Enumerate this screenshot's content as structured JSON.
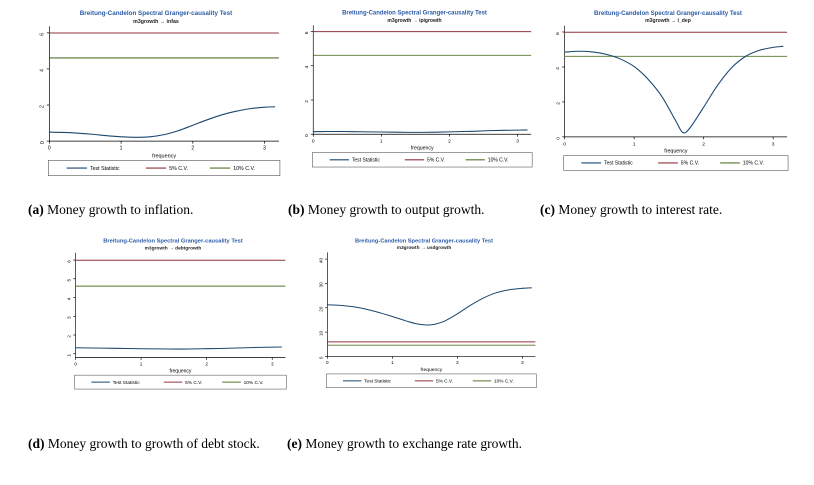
{
  "figure": {
    "legend": {
      "test": "Test Statistic",
      "cv5": "5% C.V.",
      "cv10": "10% C.V."
    },
    "colors": {
      "test_line": "#1a476f",
      "cv5_line": "#90353b",
      "cv10_line": "#55752f",
      "title_text": "#2b5ca8",
      "axis": "#000000",
      "legend_border": "#333333"
    },
    "captions": [
      {
        "label": "(a)",
        "text": "Money growth to inflation."
      },
      {
        "label": "(b)",
        "text": "Money growth to output growth."
      },
      {
        "label": "(c)",
        "text": "Money growth to interest rate."
      },
      {
        "label": "(d)",
        "text": "Money growth to growth of debt stock."
      },
      {
        "label": "(e)",
        "text": "Money growth to exchange rate growth."
      }
    ]
  },
  "chart_data": [
    {
      "type": "line",
      "title": "Breitung-Candelon Spectral Granger-causality Test",
      "subtitle": "m3growth → infas",
      "xlabel": "frequency",
      "x_ticks": [
        0,
        1,
        2,
        3
      ],
      "y_ticks": [
        0,
        2,
        4,
        6
      ],
      "xlim": [
        0,
        3.2
      ],
      "ylim": [
        0,
        6.25
      ],
      "cv5": 5.99,
      "cv10": 4.61,
      "test_statistic": {
        "x": [
          0,
          0.2,
          0.4,
          0.6,
          0.8,
          1.0,
          1.2,
          1.4,
          1.6,
          1.8,
          2.0,
          2.2,
          2.4,
          2.6,
          2.8,
          3.0,
          3.14
        ],
        "y": [
          0.5,
          0.48,
          0.44,
          0.38,
          0.3,
          0.24,
          0.21,
          0.24,
          0.36,
          0.58,
          0.88,
          1.18,
          1.45,
          1.65,
          1.8,
          1.88,
          1.9
        ]
      }
    },
    {
      "type": "line",
      "title": "Breitung-Candelon Spectral Granger-causality Test",
      "subtitle": "m3growth → ipigrowth",
      "xlabel": "frequency",
      "x_ticks": [
        0,
        1,
        2,
        3
      ],
      "y_ticks": [
        0,
        2,
        4,
        6
      ],
      "xlim": [
        0,
        3.2
      ],
      "ylim": [
        0,
        6.25
      ],
      "cv5": 5.99,
      "cv10": 4.61,
      "test_statistic": {
        "x": [
          0,
          0.2,
          0.4,
          0.6,
          0.8,
          1.0,
          1.2,
          1.4,
          1.6,
          1.8,
          2.0,
          2.2,
          2.4,
          2.6,
          2.8,
          3.0,
          3.14
        ],
        "y": [
          0.15,
          0.16,
          0.16,
          0.15,
          0.14,
          0.13,
          0.12,
          0.11,
          0.11,
          0.12,
          0.14,
          0.16,
          0.18,
          0.21,
          0.23,
          0.24,
          0.25
        ]
      }
    },
    {
      "type": "line",
      "title": "Breitung-Candelon Spectral Granger-causality Test",
      "subtitle": "m3growth → i_dep",
      "xlabel": "frequency",
      "x_ticks": [
        0,
        1,
        2,
        3
      ],
      "y_ticks": [
        0,
        2,
        4,
        6
      ],
      "xlim": [
        0,
        3.2
      ],
      "ylim": [
        0,
        6.25
      ],
      "cv5": 5.99,
      "cv10": 4.61,
      "test_statistic": {
        "x": [
          0,
          0.2,
          0.4,
          0.6,
          0.8,
          1.0,
          1.2,
          1.4,
          1.6,
          1.7,
          1.8,
          2.0,
          2.2,
          2.4,
          2.6,
          2.8,
          3.0,
          3.14
        ],
        "y": [
          4.85,
          4.9,
          4.86,
          4.72,
          4.46,
          4.02,
          3.3,
          2.3,
          0.9,
          0.25,
          0.5,
          1.7,
          2.95,
          3.95,
          4.6,
          4.95,
          5.12,
          5.18
        ]
      }
    },
    {
      "type": "line",
      "title": "Breitung-Candelon Spectral Granger-causality Test",
      "subtitle": "m3growth → debtgrowth",
      "xlabel": "frequency",
      "x_ticks": [
        0,
        1,
        2,
        3
      ],
      "y_ticks": [
        1,
        2,
        3,
        4,
        5,
        6
      ],
      "xlim": [
        0,
        3.2
      ],
      "ylim": [
        0.8,
        6.3
      ],
      "cv5": 5.99,
      "cv10": 4.61,
      "test_statistic": {
        "x": [
          0,
          0.4,
          0.8,
          1.2,
          1.6,
          2.0,
          2.4,
          2.8,
          3.14
        ],
        "y": [
          1.32,
          1.3,
          1.28,
          1.26,
          1.25,
          1.27,
          1.3,
          1.34,
          1.36
        ]
      }
    },
    {
      "type": "line",
      "title": "Breitung-Candelon Spectral Granger-causality Test",
      "subtitle": "m3growth → usdgrowth",
      "xlabel": "frequency",
      "x_ticks": [
        0,
        1,
        2,
        3
      ],
      "y_ticks": [
        0,
        10,
        20,
        30,
        40
      ],
      "xlim": [
        0,
        3.2
      ],
      "ylim": [
        0,
        42
      ],
      "cv5": 5.99,
      "cv10": 4.61,
      "test_statistic": {
        "x": [
          0,
          0.2,
          0.4,
          0.6,
          0.8,
          1.0,
          1.2,
          1.4,
          1.6,
          1.8,
          2.0,
          2.2,
          2.4,
          2.6,
          2.8,
          3.0,
          3.14
        ],
        "y": [
          21.2,
          21.0,
          20.4,
          19.4,
          18.0,
          16.4,
          14.7,
          13.3,
          13.0,
          14.5,
          17.5,
          21.0,
          24.0,
          26.2,
          27.4,
          28.0,
          28.2
        ]
      }
    }
  ]
}
